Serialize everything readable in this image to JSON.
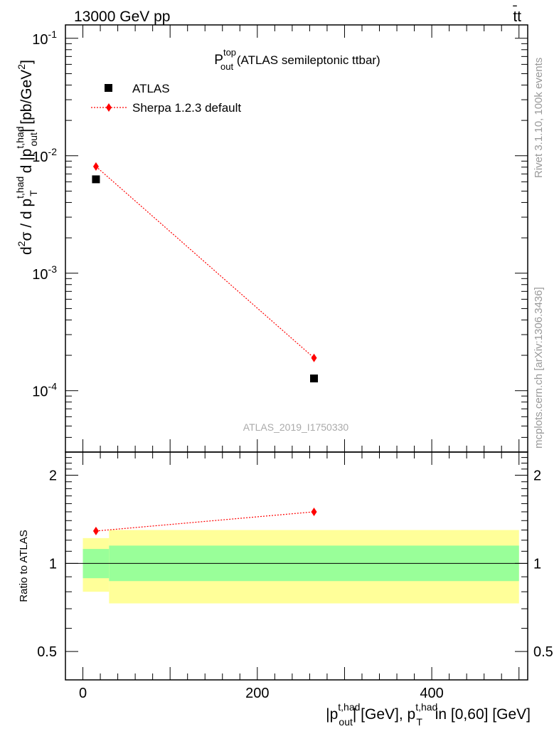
{
  "header": {
    "energy_label": "13000 GeV pp",
    "process_main": "tt",
    "process_bar": "̄"
  },
  "side_labels": {
    "rivet": "Rivet 3.1.10,  100k events",
    "mcplots": "mcplots.cern.ch [arXiv:1306.3436]"
  },
  "chart_data": {
    "type": "scatter",
    "title": {
      "main": "P",
      "sup": "top",
      "sub": "out",
      "rest": " (ATLAS semileptonic ttbar)"
    },
    "watermark": "ATLAS_2019_I1750330",
    "ylabel": {
      "p1": "d",
      "s1": "2",
      "p2": "σ / d p",
      "s2sup": "t,had",
      "s2sub": "T",
      "p3": " d |p",
      "s3sup": "t,had",
      "s3sub": "out",
      "p4": "| [pb/GeV",
      "s4": "2",
      "p5": "]"
    },
    "xlabel": {
      "p1": "|p",
      "s1sup": "t,had",
      "s1sub": "out",
      "p2": "| [GeV], p",
      "s2sup": "t,had",
      "s2sub": "T",
      "p3": " in [0,60] [GeV]"
    },
    "ratio_ylabel": "Ratio to ATLAS",
    "xlim": [
      -20,
      510
    ],
    "ylim": [
      3e-05,
      0.13
    ],
    "yscale": "log",
    "ratio_ylim": [
      0.4,
      2.4
    ],
    "ratio_yscale": "log",
    "x_ticks": [
      "0",
      "200",
      "400"
    ],
    "y_tick_labels": [
      {
        "base": "10",
        "exp": "-1"
      },
      {
        "base": "10",
        "exp": "-2"
      },
      {
        "base": "10",
        "exp": "-3"
      },
      {
        "base": "10",
        "exp": "-4"
      }
    ],
    "ratio_tick_labels": [
      "2",
      "1",
      "0.5"
    ],
    "legend_position": "top-left",
    "series": [
      {
        "name": "ATLAS",
        "marker": "square",
        "color": "#000000",
        "x": [
          15,
          265
        ],
        "y": [
          0.0063,
          0.000127
        ]
      },
      {
        "name": "Sherpa 1.2.3 default",
        "marker": "diamond",
        "color": "#ff0000",
        "line_style": "dotted",
        "x": [
          15,
          265
        ],
        "y": [
          0.0081,
          0.00019
        ],
        "ratio": [
          1.29,
          1.5
        ]
      }
    ],
    "uncertainty_bands": [
      {
        "x0": 0,
        "x1": 30,
        "inner_lo": 0.89,
        "inner_hi": 1.12,
        "outer_lo": 0.8,
        "outer_hi": 1.22
      },
      {
        "x0": 30,
        "x1": 500,
        "inner_lo": 0.87,
        "inner_hi": 1.15,
        "outer_lo": 0.73,
        "outer_hi": 1.3
      }
    ],
    "band_colors": {
      "inner": "#99ff99",
      "outer": "#ffff99"
    }
  }
}
